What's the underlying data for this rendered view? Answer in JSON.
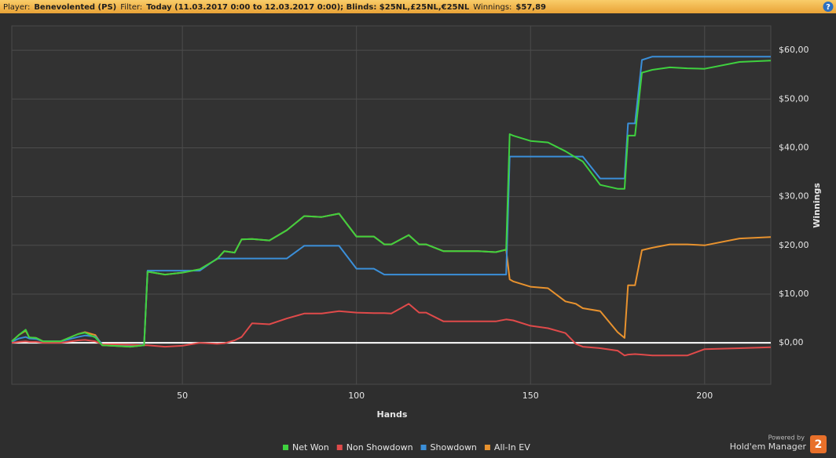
{
  "header": {
    "player_label": "Player:",
    "player": "Benevolented (PS)",
    "filter_label": "Filter:",
    "filter": "Today (11.03.2017 0:00 to 12.03.2017 0:00); Blinds: $25NL,£25NL,€25NL",
    "winnings_label": "Winnings:",
    "winnings": "$57,89",
    "help": "?"
  },
  "footer": {
    "powered_by": "Powered by",
    "brand": "Hold'em Manager",
    "logo": "2"
  },
  "chart_data": {
    "type": "line",
    "x_label": "Hands",
    "y_label": "Winnings",
    "x": [
      1,
      3,
      5,
      6,
      8,
      10,
      15,
      20,
      22,
      25,
      27,
      30,
      35,
      39,
      40,
      45,
      50,
      55,
      60,
      62,
      65,
      67,
      70,
      75,
      80,
      85,
      90,
      95,
      100,
      105,
      108,
      110,
      115,
      118,
      120,
      125,
      130,
      135,
      140,
      143,
      144,
      145,
      150,
      155,
      160,
      163,
      165,
      170,
      175,
      177,
      178,
      180,
      182,
      185,
      190,
      195,
      200,
      210,
      219
    ],
    "series": [
      {
        "name": "Net Won",
        "color": "#3fd13f",
        "values": [
          0.3,
          1.6,
          2.7,
          1.1,
          1.0,
          0.3,
          0.3,
          1.8,
          2.1,
          1.1,
          -0.5,
          -0.6,
          -0.8,
          -0.5,
          14.6,
          14.0,
          14.4,
          15.1,
          17.2,
          18.8,
          18.5,
          21.2,
          21.3,
          21.0,
          23.1,
          26.0,
          25.8,
          26.5,
          21.8,
          21.8,
          20.2,
          20.2,
          22.1,
          20.2,
          20.2,
          18.8,
          18.8,
          18.8,
          18.6,
          19.1,
          42.8,
          42.5,
          41.4,
          41.1,
          39.3,
          38.0,
          37.2,
          32.4,
          31.6,
          31.6,
          42.5,
          42.5,
          55.4,
          56.0,
          56.5,
          56.3,
          56.2,
          57.6,
          57.89
        ]
      },
      {
        "name": "Non Showdown",
        "color": "#e04a4a",
        "values": [
          0,
          0.2,
          0.3,
          0.2,
          0.2,
          0,
          0,
          0.5,
          0.6,
          0.3,
          -0.3,
          -0.3,
          -0.4,
          -0.5,
          -0.5,
          -0.8,
          -0.6,
          0,
          -0.2,
          -0.1,
          0.5,
          1.2,
          4.0,
          3.8,
          5.0,
          6.0,
          6.0,
          6.5,
          6.2,
          6.1,
          6.1,
          6.0,
          8.0,
          6.2,
          6.2,
          4.4,
          4.4,
          4.4,
          4.4,
          4.8,
          4.7,
          4.6,
          3.5,
          3.0,
          2.0,
          -0.2,
          -0.8,
          -1.1,
          -1.6,
          -2.6,
          -2.4,
          -2.3,
          -2.4,
          -2.6,
          -2.6,
          -2.6,
          -1.3,
          -1.1,
          -0.9
        ]
      },
      {
        "name": "Showdown",
        "color": "#3b8fd9",
        "values": [
          0.2,
          0.9,
          1.2,
          0.9,
          0.8,
          0.3,
          0.3,
          1.2,
          1.5,
          1.3,
          -0.3,
          -0.4,
          -0.5,
          -0.4,
          14.8,
          14.8,
          14.8,
          14.8,
          17.3,
          17.3,
          17.3,
          17.3,
          17.3,
          17.3,
          17.3,
          19.9,
          19.9,
          19.9,
          15.2,
          15.2,
          14.0,
          14.0,
          14.0,
          14.0,
          14.0,
          14.0,
          14.0,
          14.0,
          14.0,
          14.0,
          38.2,
          38.2,
          38.2,
          38.2,
          38.2,
          38.2,
          38.2,
          33.7,
          33.7,
          33.7,
          45.0,
          45.0,
          58.0,
          58.7,
          58.7,
          58.7,
          58.7,
          58.7,
          58.7
        ]
      },
      {
        "name": "All-In EV",
        "color": "#e8922e",
        "values": [
          0.3,
          1.6,
          2.5,
          1.1,
          1.0,
          0.3,
          0.3,
          1.8,
          2.2,
          1.6,
          -0.5,
          -0.6,
          -0.8,
          -0.5,
          14.6,
          14.0,
          14.4,
          15.1,
          17.2,
          18.8,
          18.5,
          21.2,
          21.3,
          21.0,
          23.1,
          26.0,
          25.8,
          26.5,
          21.8,
          21.8,
          20.2,
          20.2,
          22.1,
          20.2,
          20.2,
          18.8,
          18.8,
          18.8,
          18.6,
          19.1,
          13.0,
          12.6,
          11.5,
          11.2,
          8.5,
          8.0,
          7.1,
          6.5,
          2.2,
          1.0,
          11.8,
          11.8,
          19.0,
          19.5,
          20.2,
          20.2,
          20.0,
          21.4,
          21.7
        ]
      }
    ],
    "xlim": [
      1,
      219
    ],
    "xticks": [
      50,
      100,
      150,
      200
    ],
    "ylim": [
      -8.5,
      65
    ],
    "yticks": [
      {
        "value": 0,
        "label": "$0,00"
      },
      {
        "value": 10,
        "label": "$10,00"
      },
      {
        "value": 20,
        "label": "$20,00"
      },
      {
        "value": 30,
        "label": "$30,00"
      },
      {
        "value": 40,
        "label": "$40,00"
      },
      {
        "value": 50,
        "label": "$50,00"
      },
      {
        "value": 60,
        "label": "$60,00"
      }
    ],
    "grid": true,
    "legend": "bottom"
  }
}
